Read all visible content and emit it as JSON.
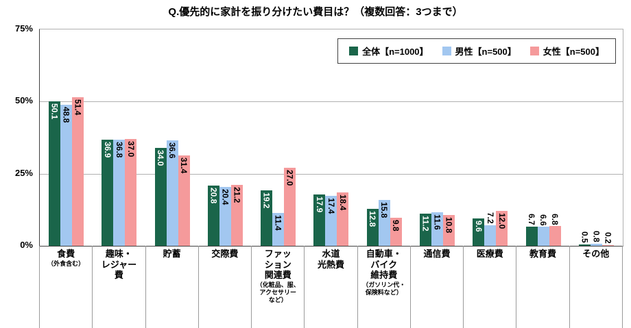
{
  "title": "Q.優先的に家計を振り分けたい費目は？（複数回答：3つまで）",
  "colors": {
    "series_all": "#1a654a",
    "series_male": "#a2c7f0",
    "series_female": "#f59a9b",
    "gridline": "#b0b0b0",
    "axis": "#404040"
  },
  "chart_data": {
    "type": "bar",
    "title": "Q.優先的に家計を振り分けたい費目は？（複数回答：3つまで）",
    "xlabel": "",
    "ylabel": "",
    "ylim": [
      0,
      75
    ],
    "grid": true,
    "legend_position": "top-right",
    "yticks": [
      {
        "label": "0%",
        "value": 0
      },
      {
        "label": "25%",
        "value": 25
      },
      {
        "label": "50%",
        "value": 50
      },
      {
        "label": "75%",
        "value": 75
      }
    ],
    "categories": [
      {
        "label": "食費",
        "note": "（外食含む）"
      },
      {
        "label": "趣味・\nレジャー\n費",
        "note": ""
      },
      {
        "label": "貯蓄",
        "note": ""
      },
      {
        "label": "交際費",
        "note": ""
      },
      {
        "label": "ファッ\nション\n関連費",
        "note": "（化粧品、服、\nアクセサリー\nなど）"
      },
      {
        "label": "水道\n光熱費",
        "note": ""
      },
      {
        "label": "自動車・\nバイク\n維持費",
        "note": "（ガソリン代・\n保険料など）"
      },
      {
        "label": "通信費",
        "note": ""
      },
      {
        "label": "医療費",
        "note": ""
      },
      {
        "label": "教育費",
        "note": ""
      },
      {
        "label": "その他",
        "note": ""
      }
    ],
    "series": [
      {
        "name": "全体【n=1000】",
        "color": "#1a654a",
        "label_color": "#ffffff",
        "values": [
          50.1,
          36.9,
          34.0,
          20.8,
          19.2,
          17.9,
          12.8,
          11.2,
          9.6,
          6.7,
          0.5
        ]
      },
      {
        "name": "男性【n=500】",
        "color": "#a2c7f0",
        "label_color": "#000000",
        "values": [
          48.8,
          36.8,
          36.6,
          20.4,
          11.4,
          17.4,
          15.8,
          11.6,
          7.2,
          6.6,
          0.8
        ]
      },
      {
        "name": "女性【n=500】",
        "color": "#f59a9b",
        "label_color": "#000000",
        "values": [
          51.4,
          37.0,
          31.4,
          21.2,
          27.0,
          18.4,
          9.8,
          10.8,
          12.0,
          6.8,
          0.2
        ]
      }
    ]
  }
}
